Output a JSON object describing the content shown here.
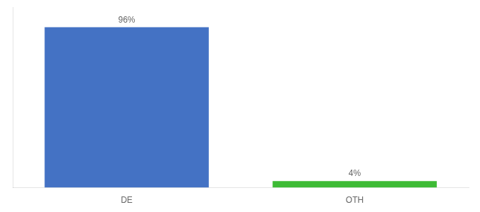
{
  "chart_data": {
    "type": "bar",
    "categories": [
      "DE",
      "OTH"
    ],
    "values": [
      96,
      4
    ],
    "value_labels": [
      "96%",
      "4%"
    ],
    "data_labels": true,
    "colors": [
      "#4472c4",
      "#3dbb35"
    ],
    "ylim": [
      0,
      108
    ],
    "tick_labels": "x",
    "grid": false
  }
}
